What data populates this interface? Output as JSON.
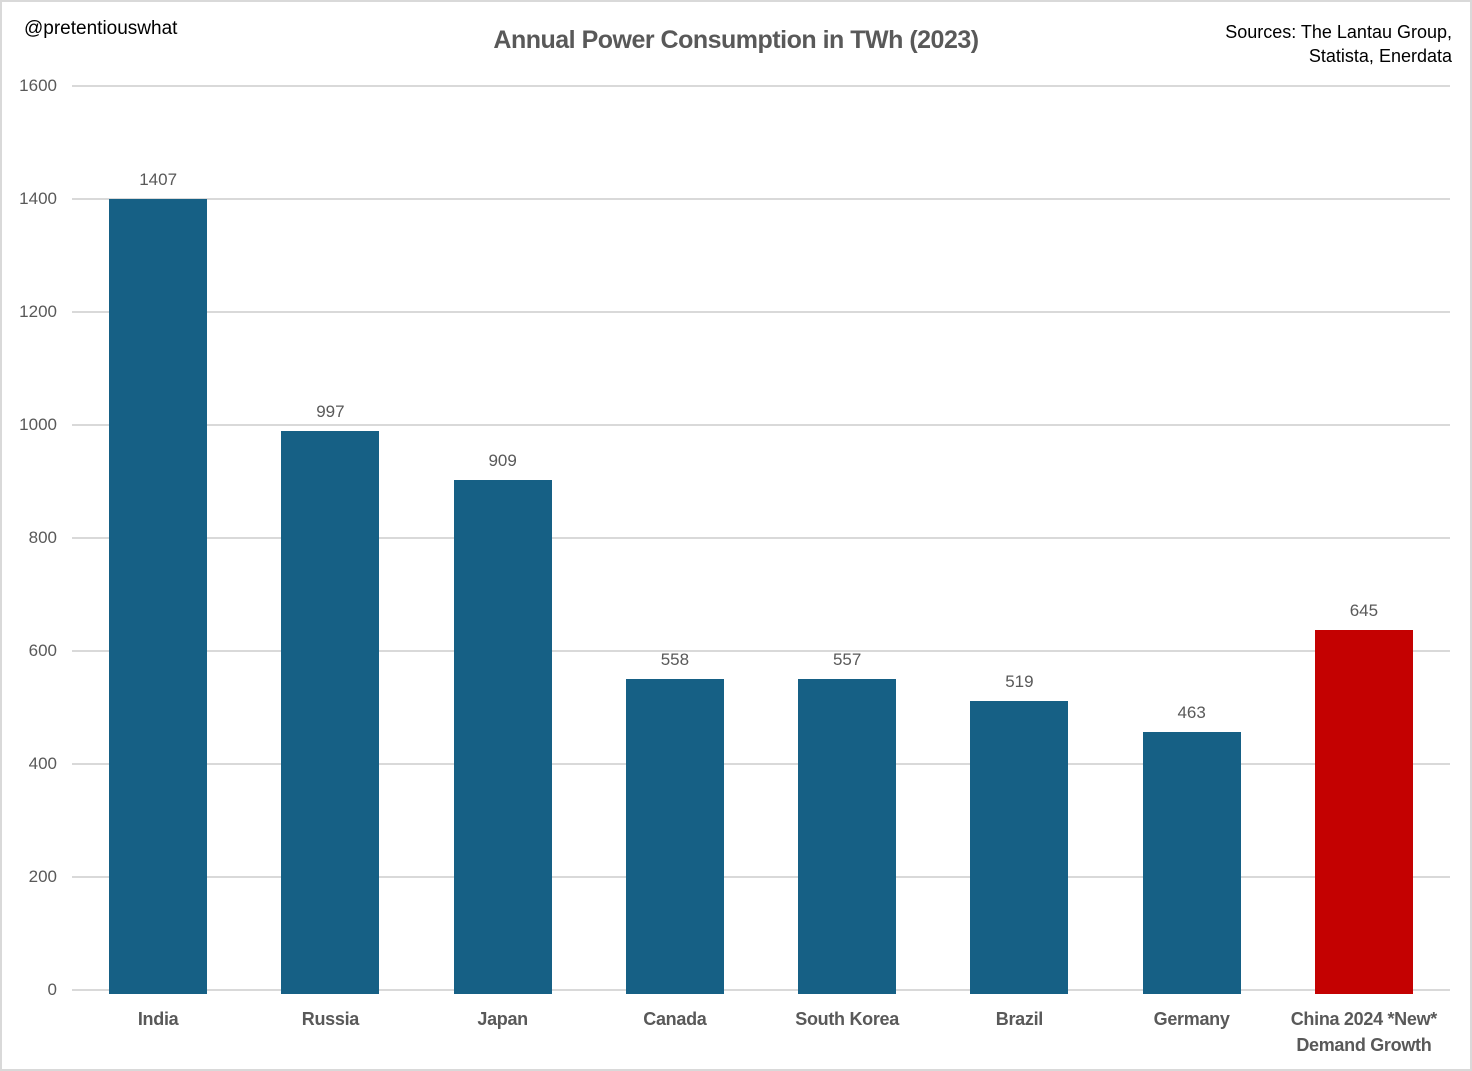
{
  "header": {
    "watermark": "@pretentiouswhat",
    "sources_line1": "Sources: The Lantau Group,",
    "sources_line2": "Statista, Enerdata"
  },
  "chart_data": {
    "type": "bar",
    "title": "Annual Power Consumption in TWh (2023)",
    "xlabel": "",
    "ylabel": "",
    "categories": [
      "India",
      "Russia",
      "Japan",
      "Canada",
      "South Korea",
      "Brazil",
      "Germany",
      "China 2024 *New*\nDemand Growth"
    ],
    "values": [
      1407,
      997,
      909,
      558,
      557,
      519,
      463,
      645
    ],
    "bar_colors": [
      "#166085",
      "#166085",
      "#166085",
      "#166085",
      "#166085",
      "#166085",
      "#166085",
      "#c40101"
    ],
    "ylim": [
      0,
      1600
    ],
    "yticks": [
      0,
      200,
      400,
      600,
      800,
      1000,
      1200,
      1400,
      1600
    ],
    "grid": "horizontal",
    "value_labels": true,
    "legend": "none",
    "colors": {
      "default_bar": "#166085",
      "highlight_bar": "#c40101",
      "gridline": "#d9d9d9",
      "text_gray": "#595959",
      "text_black": "#000000"
    }
  }
}
